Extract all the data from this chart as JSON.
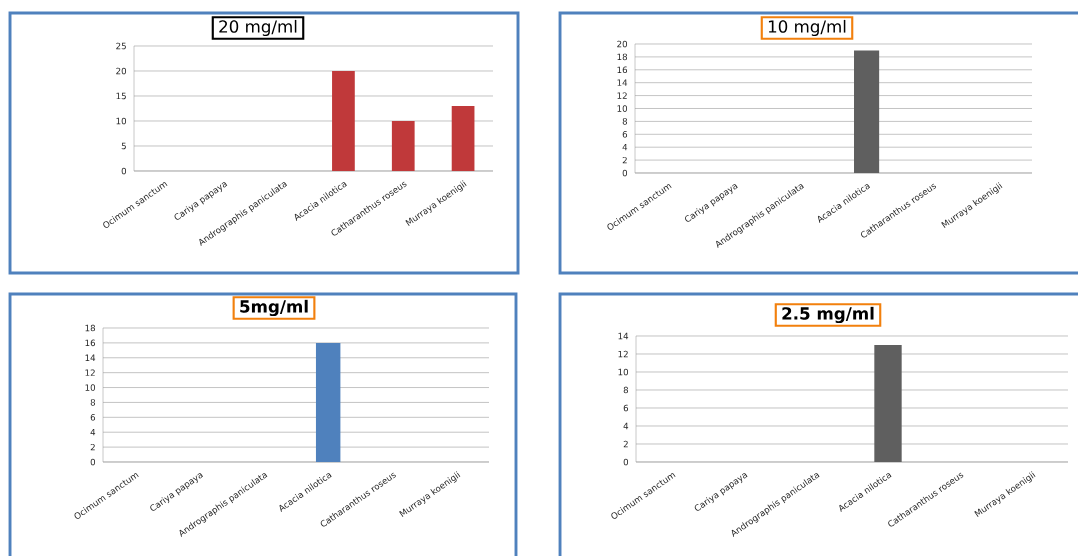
{
  "chart_data": [
    {
      "type": "bar",
      "title": "20 mg/ml",
      "categories": [
        "Ocimum sanctum",
        "Cariya papaya",
        "Andrographis paniculata",
        "Acacia nilotica",
        "Catharanthus roseus",
        "Murraya koenigii"
      ],
      "values": [
        0,
        0,
        0,
        20,
        10,
        13
      ],
      "color": "#c0393a",
      "ylim": [
        0,
        25
      ],
      "yticks": [
        0,
        5,
        10,
        15,
        20,
        25
      ],
      "grid": "y"
    },
    {
      "type": "bar",
      "title": "10 mg/ml",
      "categories": [
        "Ocimum sanctum",
        "Cariya papaya",
        "Andrographis paniculata",
        "Acacia nilotica",
        "Catharanthus roseus",
        "Murraya koenigii"
      ],
      "values": [
        0,
        0,
        0,
        19,
        0,
        0
      ],
      "color": "#5f5f5f",
      "ylim": [
        0,
        20
      ],
      "yticks": [
        0,
        2,
        4,
        6,
        8,
        10,
        12,
        14,
        16,
        18,
        20
      ],
      "grid": "y"
    },
    {
      "type": "bar",
      "title": "5mg/ml",
      "categories": [
        "Ocimum sanctum",
        "Cariya papaya",
        "Andrographis paniculata",
        "Acacia nilotica",
        "Catharanthus roseus",
        "Murraya koenigii"
      ],
      "values": [
        0,
        0,
        0,
        16,
        0,
        0
      ],
      "color": "#4f81bd",
      "ylim": [
        0,
        18
      ],
      "yticks": [
        0,
        2,
        4,
        6,
        8,
        10,
        12,
        14,
        16,
        18
      ],
      "grid": "y"
    },
    {
      "type": "bar",
      "title": "2.5 mg/ml",
      "categories": [
        "Ocimum sanctum",
        "Cariya papaya",
        "Andrographis paniculata",
        "Acacia nilotica",
        "Catharanthus roseus",
        "Murraya koenigii"
      ],
      "values": [
        0,
        0,
        0,
        13,
        0,
        0
      ],
      "color": "#5f5f5f",
      "ylim": [
        0,
        14
      ],
      "yticks": [
        0,
        2,
        4,
        6,
        8,
        10,
        12,
        14
      ],
      "grid": "y"
    }
  ]
}
